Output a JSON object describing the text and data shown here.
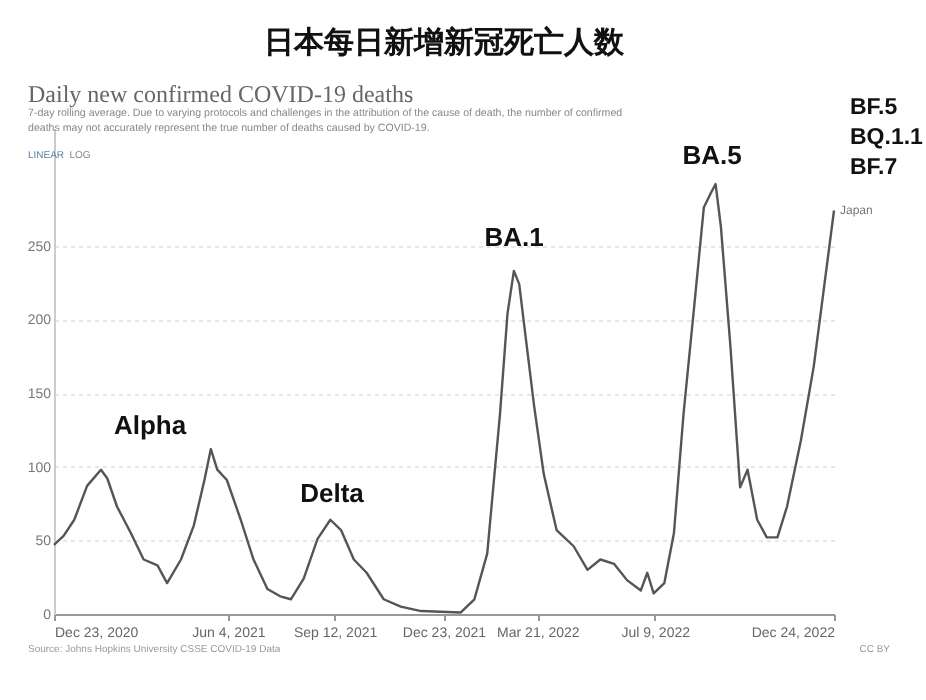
{
  "chart_data": {
    "type": "line",
    "title": "日本每日新增新冠死亡人数",
    "subtitle": "Daily new confirmed COVID-19 deaths",
    "annotations": [
      "7-day rolling average. Due to varying protocols and challenges in the attribution of the cause of death, the number of confirmed deaths may not accurately represent the true number of deaths caused by COVID-19.",
      "LINEAR",
      "LOG",
      "BF.5\nBQ.1.1\nBF.7",
      "Source: Johns Hopkins University CSSE COVID-19 Data",
      "CC BY",
      "Alpha",
      "Delta",
      "BA.1",
      "BA.5"
    ],
    "x": [
      "2020-12-23",
      "2021-01-01",
      "2021-01-11",
      "2021-01-23",
      "2021-02-05",
      "2021-02-11",
      "2021-02-20",
      "2021-03-05",
      "2021-03-17",
      "2021-03-30",
      "2021-04-08",
      "2021-04-21",
      "2021-05-03",
      "2021-05-13",
      "2021-05-19",
      "2021-05-25",
      "2021-06-03",
      "2021-06-16",
      "2021-06-28",
      "2021-07-11",
      "2021-07-23",
      "2021-08-02",
      "2021-08-14",
      "2021-08-27",
      "2021-09-08",
      "2021-09-18",
      "2021-09-30",
      "2021-10-12",
      "2021-10-28",
      "2021-11-13",
      "2021-12-02",
      "2022-01-08",
      "2022-01-21",
      "2022-02-02",
      "2022-02-14",
      "2022-02-21",
      "2022-02-27",
      "2022-03-04",
      "2022-03-08",
      "2022-03-18",
      "2022-03-27",
      "2022-04-08",
      "2022-04-24",
      "2022-05-07",
      "2022-05-19",
      "2022-06-01",
      "2022-06-13",
      "2022-06-26",
      "2022-07-02",
      "2022-07-08",
      "2022-07-18",
      "2022-07-27",
      "2022-08-05",
      "2022-08-15",
      "2022-08-24",
      "2022-08-30",
      "2022-09-04",
      "2022-09-09",
      "2022-09-18",
      "2022-09-27",
      "2022-10-04",
      "2022-10-13",
      "2022-10-22",
      "2022-11-01",
      "2022-11-10",
      "2022-11-23",
      "2022-12-05",
      "2022-12-14",
      "2022-12-24"
    ],
    "series": [
      {
        "name": "Japan",
        "color": "#555555",
        "values": [
          47,
          53,
          64,
          87,
          98,
          92,
          73,
          55,
          37,
          33,
          21,
          37,
          60,
          91,
          112,
          98,
          91,
          64,
          37,
          17,
          12,
          10,
          24,
          51,
          64,
          57,
          37,
          28,
          10,
          5,
          2,
          1,
          10,
          41,
          136,
          204,
          233,
          224,
          200,
          141,
          95,
          57,
          46,
          30,
          37,
          34,
          23,
          16,
          28,
          14,
          21,
          55,
          136,
          209,
          276,
          285,
          292,
          263,
          181,
          86,
          98,
          64,
          52,
          52,
          73,
          118,
          168,
          218,
          274
        ]
      }
    ],
    "xlim": [
      "2020-12-23",
      "2022-12-24"
    ],
    "xticks": [
      {
        "value": "2020-12-23",
        "label": "Dec 23, 2020"
      },
      {
        "value": "2021-06-04",
        "label": "Jun 4, 2021"
      },
      {
        "value": "2021-09-12",
        "label": "Sep 12, 2021"
      },
      {
        "value": "2021-12-23",
        "label": "Dec 23, 2021"
      },
      {
        "value": "2022-03-21",
        "label": "Mar 21, 2022"
      },
      {
        "value": "2022-07-09",
        "label": "Jul 9, 2022"
      },
      {
        "value": "2022-12-24",
        "label": "Dec 24, 2022"
      }
    ],
    "ylim": [
      0,
      330
    ],
    "yticks": [
      0,
      50,
      100,
      150,
      200,
      250
    ],
    "grid": "y",
    "legend": false,
    "marker": "none",
    "line_style": "solid"
  }
}
